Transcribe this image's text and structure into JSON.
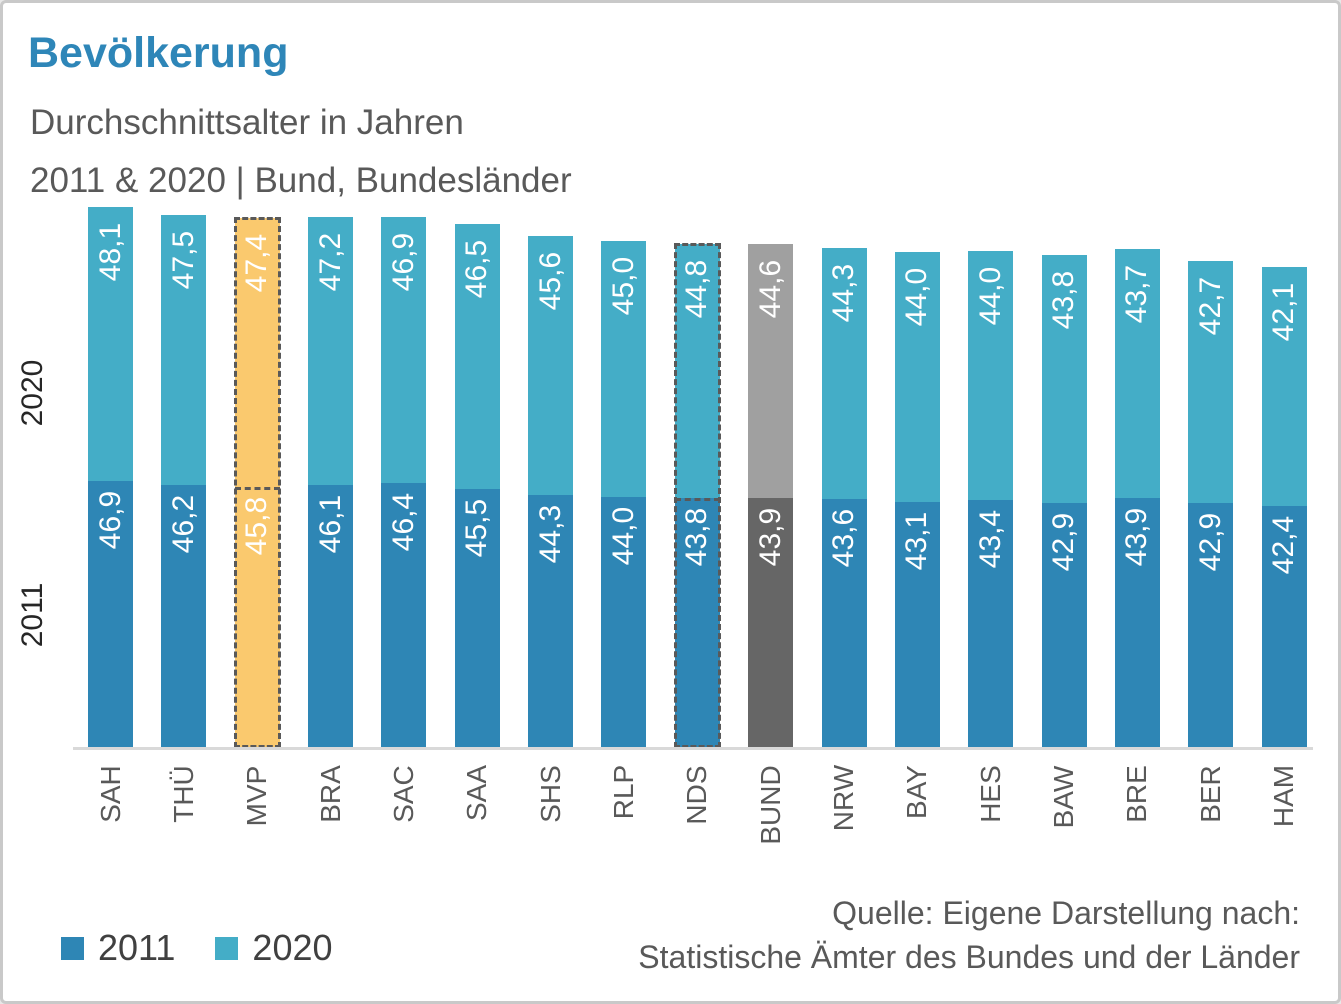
{
  "header": {
    "title": "Bevölkerung",
    "subtitle_line1": "Durchschnittsalter in Jahren",
    "subtitle_line2": "2011 & 2020 | Bund, Bundesländer"
  },
  "chart_data": {
    "type": "bar",
    "stacked": true,
    "orientation": "vertical",
    "title": "Bevölkerung — Durchschnittsalter in Jahren, 2011 & 2020, Bund und Bundesländer",
    "categories": [
      "SAH",
      "THÜ",
      "MVP",
      "BRA",
      "SAC",
      "SAA",
      "SHS",
      "RLP",
      "NDS",
      "BUND",
      "NRW",
      "BAY",
      "HES",
      "BAW",
      "BRE",
      "BER",
      "HAM"
    ],
    "series": [
      {
        "name": "2011",
        "color": "#2e86b5",
        "values": [
          46.9,
          46.2,
          45.8,
          46.1,
          46.4,
          45.5,
          44.3,
          44.0,
          43.8,
          43.9,
          43.6,
          43.1,
          43.4,
          42.9,
          43.9,
          42.9,
          42.4
        ]
      },
      {
        "name": "2020",
        "color": "#44adc7",
        "values": [
          48.1,
          47.5,
          47.4,
          47.2,
          46.9,
          46.5,
          45.6,
          45.0,
          44.8,
          44.6,
          44.3,
          44.0,
          44.0,
          43.8,
          43.7,
          42.7,
          42.1
        ]
      }
    ],
    "value_labels": "inside bars, rotated 90°, comma decimal, one decimal place",
    "section_labels": {
      "upper": "2020",
      "lower": "2011"
    },
    "highlights": {
      "MVP": {
        "style": "orange fill, dashed outline, dashed divider",
        "fill": "#fac96e"
      },
      "NDS": {
        "style": "dashed outline, dashed divider"
      },
      "BUND": {
        "style": "gray fill",
        "color_2020": "#a0a0a0",
        "color_2011": "#666666"
      }
    },
    "xlabel": "",
    "ylabel": "",
    "gridlines": false,
    "legend_position": "bottom-left"
  },
  "legend": {
    "items": [
      {
        "label": "2011",
        "color": "#2e86b5"
      },
      {
        "label": "2020",
        "color": "#44adc7"
      }
    ]
  },
  "source": {
    "line1": "Quelle: Eigene Darstellung nach:",
    "line2": "Statistische Ämter des Bundes und der Länder"
  }
}
